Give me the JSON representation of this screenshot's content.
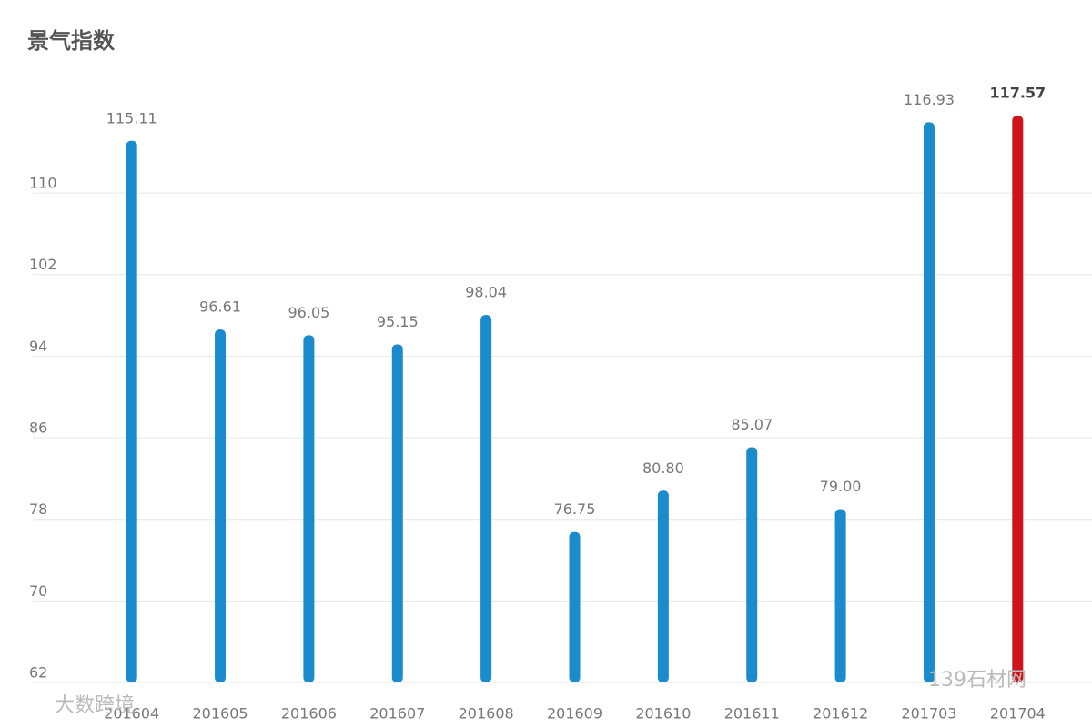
{
  "chart_data": {
    "type": "bar",
    "title": "景气指数",
    "categories": [
      "201604",
      "201605",
      "201606",
      "201607",
      "201608",
      "201609",
      "201610",
      "201611",
      "201612",
      "201703",
      "201704"
    ],
    "values": [
      115.11,
      96.61,
      96.05,
      95.15,
      98.04,
      76.75,
      80.8,
      85.07,
      79,
      116.93,
      117.57
    ],
    "value_labels": [
      "115.11",
      "96.61",
      "96.05",
      "95.15",
      "98.04",
      "76.75",
      "80.80",
      "85.07",
      "79.00",
      "116.93",
      "117.57"
    ],
    "colors": [
      "#1a8bcc",
      "#1a8bcc",
      "#1a8bcc",
      "#1a8bcc",
      "#1a8bcc",
      "#1a8bcc",
      "#1a8bcc",
      "#1a8bcc",
      "#1a8bcc",
      "#1a8bcc",
      "#d0121b"
    ],
    "ylim": [
      62,
      120
    ],
    "yticks": [
      62,
      70,
      78,
      86,
      94,
      102,
      110
    ],
    "grid": true
  },
  "watermarks": [
    "大数跨境",
    "139石材网"
  ]
}
